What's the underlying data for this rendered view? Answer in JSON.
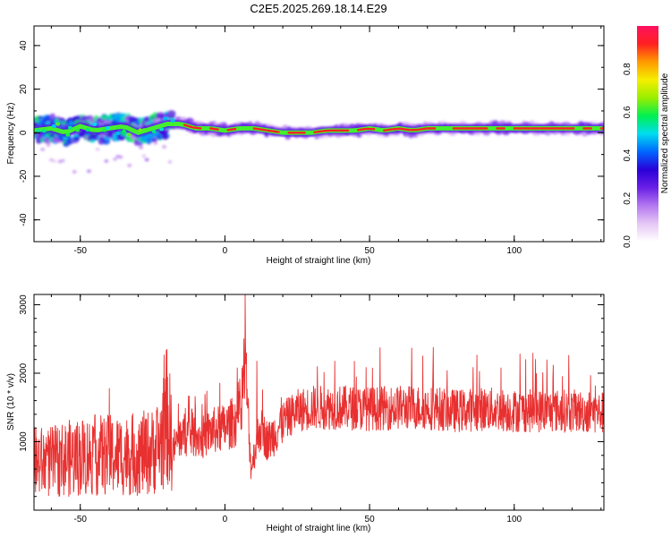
{
  "page": {
    "title": "C2E5.2025.269.18.14.E29"
  },
  "chart_data": [
    {
      "type": "heatmap",
      "xlabel": "Height of straight line (km)",
      "ylabel": "Frequency (Hz)",
      "xlim": [
        -66,
        131
      ],
      "ylim": [
        -50,
        49
      ],
      "x_ticks": [
        -50,
        0,
        50,
        100
      ],
      "y_ticks": [
        -40,
        -20,
        0,
        20,
        40
      ],
      "grid": false,
      "ridge": [
        {
          "x": -66,
          "freq": 1
        },
        {
          "x": -60,
          "freq": 2
        },
        {
          "x": -55,
          "freq": 0
        },
        {
          "x": -50,
          "freq": 3
        },
        {
          "x": -45,
          "freq": 1
        },
        {
          "x": -40,
          "freq": 2
        },
        {
          "x": -35,
          "freq": 3
        },
        {
          "x": -30,
          "freq": 0
        },
        {
          "x": -25,
          "freq": 2
        },
        {
          "x": -20,
          "freq": 4
        },
        {
          "x": -15,
          "freq": 4
        },
        {
          "x": -10,
          "freq": 2
        },
        {
          "x": -5,
          "freq": 2
        },
        {
          "x": 0,
          "freq": 1
        },
        {
          "x": 5,
          "freq": 2
        },
        {
          "x": 10,
          "freq": 2
        },
        {
          "x": 15,
          "freq": 1
        },
        {
          "x": 20,
          "freq": 0
        },
        {
          "x": 25,
          "freq": 0
        },
        {
          "x": 30,
          "freq": 0
        },
        {
          "x": 35,
          "freq": 1
        },
        {
          "x": 40,
          "freq": 1
        },
        {
          "x": 45,
          "freq": 1
        },
        {
          "x": 50,
          "freq": 2
        },
        {
          "x": 55,
          "freq": 1
        },
        {
          "x": 60,
          "freq": 2
        },
        {
          "x": 65,
          "freq": 1
        },
        {
          "x": 70,
          "freq": 2
        },
        {
          "x": 75,
          "freq": 2
        },
        {
          "x": 80,
          "freq": 2
        },
        {
          "x": 85,
          "freq": 2
        },
        {
          "x": 90,
          "freq": 2
        },
        {
          "x": 95,
          "freq": 2
        },
        {
          "x": 100,
          "freq": 2
        },
        {
          "x": 105,
          "freq": 2
        },
        {
          "x": 110,
          "freq": 2
        },
        {
          "x": 115,
          "freq": 2
        },
        {
          "x": 120,
          "freq": 2
        },
        {
          "x": 125,
          "freq": 2
        },
        {
          "x": 131,
          "freq": 2
        }
      ],
      "colorbar": {
        "label": "Normalized spectral amplitude",
        "range": [
          0,
          1
        ],
        "ticks": [
          "0.0",
          "0.2",
          "0.4",
          "0.6",
          "0.8"
        ],
        "colors": [
          "#ffffff",
          "#e6c8f5",
          "#b478f0",
          "#6a1fe6",
          "#2a00d8",
          "#0066ff",
          "#00dcf0",
          "#00f050",
          "#9aee00",
          "#f5ee00",
          "#ff9a00",
          "#ff2020",
          "#ff1060"
        ]
      }
    },
    {
      "type": "line",
      "xlabel": "Height of straight line (km)",
      "ylabel": "SNR (10 * v/v)",
      "xlim": [
        -66,
        131
      ],
      "ylim": [
        0,
        3150
      ],
      "x_ticks": [
        -50,
        0,
        50,
        100
      ],
      "y_ticks": [
        1000,
        2000,
        3000
      ],
      "grid": false,
      "color": "#e83030",
      "trend": [
        {
          "x": -66,
          "y": 700
        },
        {
          "x": -60,
          "y": 700
        },
        {
          "x": -55,
          "y": 750
        },
        {
          "x": -50,
          "y": 780
        },
        {
          "x": -45,
          "y": 800
        },
        {
          "x": -40,
          "y": 800
        },
        {
          "x": -35,
          "y": 800
        },
        {
          "x": -30,
          "y": 820
        },
        {
          "x": -25,
          "y": 850
        },
        {
          "x": -22,
          "y": 1000
        },
        {
          "x": -20,
          "y": 1400
        },
        {
          "x": -18,
          "y": 900
        },
        {
          "x": -15,
          "y": 1100
        },
        {
          "x": -10,
          "y": 1100
        },
        {
          "x": -8,
          "y": 1050
        },
        {
          "x": -5,
          "y": 1150
        },
        {
          "x": 0,
          "y": 1200
        },
        {
          "x": 5,
          "y": 1350
        },
        {
          "x": 7,
          "y": 2200
        },
        {
          "x": 9,
          "y": 600
        },
        {
          "x": 12,
          "y": 1200
        },
        {
          "x": 15,
          "y": 1000
        },
        {
          "x": 20,
          "y": 1300
        },
        {
          "x": 25,
          "y": 1450
        },
        {
          "x": 30,
          "y": 1500
        },
        {
          "x": 40,
          "y": 1500
        },
        {
          "x": 50,
          "y": 1480
        },
        {
          "x": 60,
          "y": 1500
        },
        {
          "x": 70,
          "y": 1500
        },
        {
          "x": 80,
          "y": 1450
        },
        {
          "x": 90,
          "y": 1480
        },
        {
          "x": 100,
          "y": 1450
        },
        {
          "x": 110,
          "y": 1450
        },
        {
          "x": 120,
          "y": 1450
        },
        {
          "x": 131,
          "y": 1420
        }
      ],
      "peaks": [
        {
          "x": 7,
          "y": 3150
        },
        {
          "x": -21,
          "y": 2270
        },
        {
          "x": 72,
          "y": 2380
        },
        {
          "x": -40,
          "y": 1780
        },
        {
          "x": 11,
          "y": 2180
        },
        {
          "x": 38,
          "y": 2180
        },
        {
          "x": 32,
          "y": 2100
        },
        {
          "x": 51,
          "y": 2080
        },
        {
          "x": 88,
          "y": 2030
        },
        {
          "x": 128,
          "y": 1820
        }
      ]
    }
  ]
}
